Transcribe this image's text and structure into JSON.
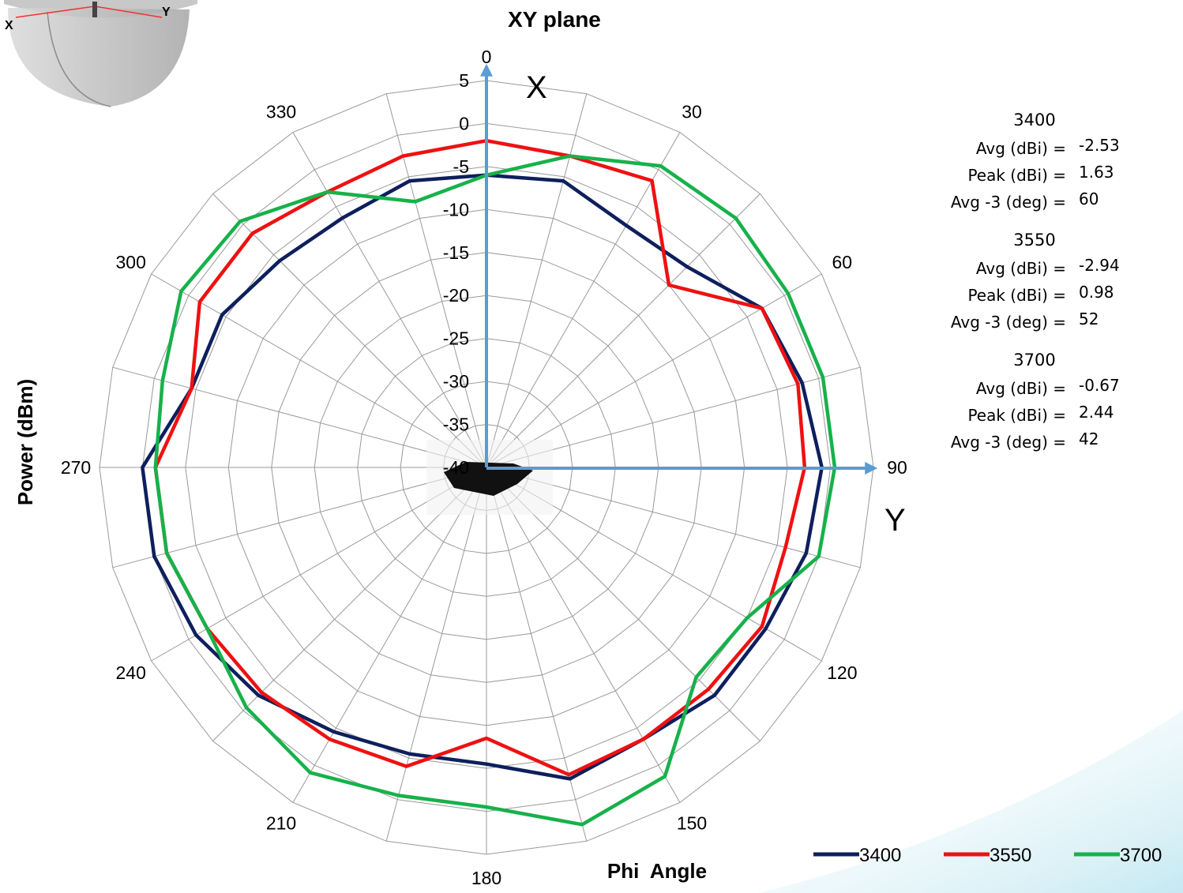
{
  "chart_data": {
    "type": "polar-line",
    "title": "XY plane",
    "xlabel": "Phi  Angle",
    "ylabel": "Power (dBm)",
    "radial_range": [
      -40,
      5
    ],
    "radial_ticks": [
      5,
      0,
      -5,
      -10,
      -15,
      -20,
      -25,
      -30,
      -35,
      -40
    ],
    "angle_labels": [
      0,
      30,
      60,
      90,
      120,
      150,
      180,
      210,
      240,
      270,
      300,
      330
    ],
    "angle_step": 15,
    "grid": true,
    "axis_markers": [
      "X",
      "Y"
    ],
    "legend_position": "bottom-right",
    "series": [
      {
        "name": "3400",
        "color": "#0d1f5c",
        "angles": [
          0,
          15,
          30,
          45,
          60,
          75,
          90,
          105,
          120,
          135,
          150,
          165,
          180,
          195,
          210,
          225,
          240,
          255,
          270,
          285,
          300,
          315,
          330,
          345
        ],
        "values": [
          -6,
          -5.5,
          -7.5,
          -7,
          -3,
          -2,
          -1,
          -1.5,
          -2.5,
          -2.5,
          -3.5,
          -2.5,
          -5.5,
          -5.5,
          -4.5,
          -2.5,
          -1,
          0,
          0,
          -4.5,
          -4.5,
          -6,
          -6.5,
          -5.5
        ]
      },
      {
        "name": "3550",
        "color": "#ee1111",
        "angles": [
          0,
          15,
          30,
          45,
          60,
          75,
          90,
          105,
          120,
          135,
          150,
          165,
          180,
          195,
          210,
          225,
          240,
          255,
          270,
          285,
          300,
          315,
          330,
          345
        ],
        "values": [
          -2,
          -2.5,
          -1.5,
          -10,
          -3,
          -2.5,
          -3,
          -4,
          -3,
          -3.5,
          -3.5,
          -3,
          -8.5,
          -4,
          -3.5,
          -3,
          -2.5,
          -1.5,
          -1.5,
          -4.5,
          -1.5,
          -1.5,
          -3,
          -2.5
        ]
      },
      {
        "name": "3700",
        "color": "#17b14a",
        "angles": [
          0,
          15,
          30,
          45,
          60,
          75,
          90,
          105,
          120,
          135,
          150,
          165,
          180,
          195,
          210,
          225,
          240,
          255,
          270,
          285,
          300,
          315,
          330,
          345
        ],
        "values": [
          -6,
          -2.5,
          0.5,
          1,
          0.5,
          0.5,
          0.5,
          0,
          -5,
          -5.5,
          1.5,
          3,
          -0.5,
          -0.5,
          1,
          -0.5,
          -2.5,
          -1.5,
          -1.5,
          -1,
          1,
          0.5,
          -3,
          -8
        ]
      }
    ]
  },
  "stats": [
    {
      "title": "3400",
      "rows": [
        {
          "label": "Avg (dBi) =",
          "value": "-2.53"
        },
        {
          "label": "Peak (dBi) =",
          "value": "1.63"
        },
        {
          "label": "Avg -3 (deg) =",
          "value": "60"
        }
      ]
    },
    {
      "title": "3550",
      "rows": [
        {
          "label": "Avg (dBi) =",
          "value": "-2.94"
        },
        {
          "label": "Peak (dBi) =",
          "value": "0.98"
        },
        {
          "label": "Avg -3 (deg) =",
          "value": "52"
        }
      ]
    },
    {
      "title": "3700",
      "rows": [
        {
          "label": "Avg (dBi) =",
          "value": "-0.67"
        },
        {
          "label": "Peak (dBi) =",
          "value": "2.44"
        },
        {
          "label": "Avg -3 (deg) =",
          "value": "42"
        }
      ]
    }
  ],
  "inset": {
    "labels": [
      "X",
      "Y"
    ]
  },
  "colors": {
    "axis_arrow": "#5b9bd5",
    "grid": "#999999",
    "inset_shade": "#bfbfbf"
  }
}
